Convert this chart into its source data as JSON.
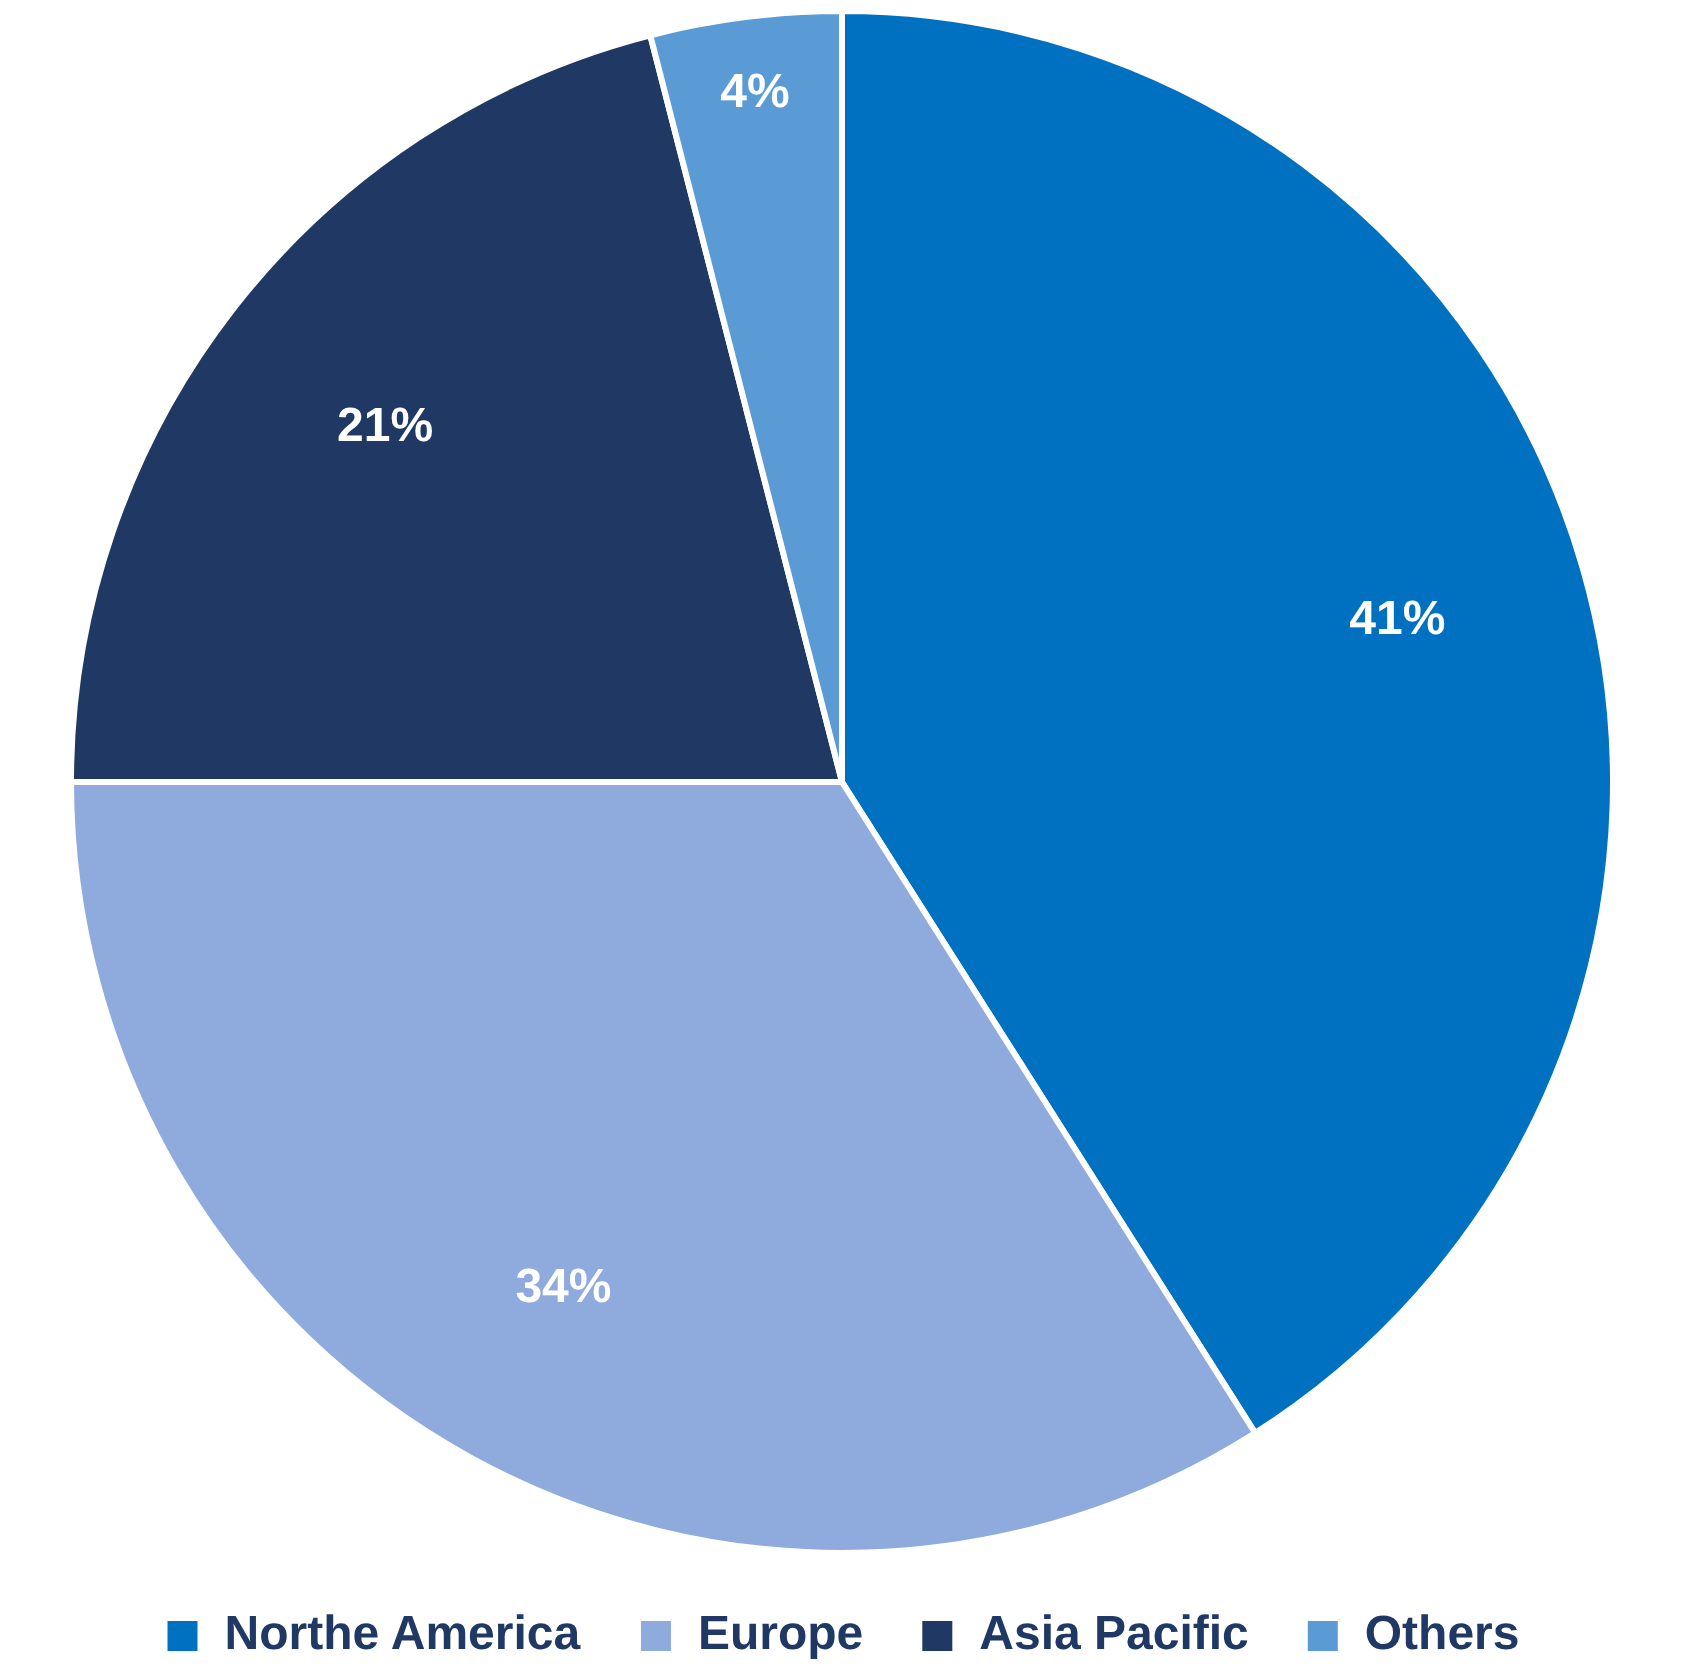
{
  "chart_data": {
    "type": "pie",
    "categories": [
      "Northe America",
      "Europe",
      "Asia Pacific",
      "Others"
    ],
    "values": [
      41,
      34,
      21,
      4
    ],
    "colors": [
      "#0070c0",
      "#8faadc",
      "#203864",
      "#5b9bd5"
    ],
    "value_labels": [
      "41%",
      "34%",
      "21%",
      "4%"
    ],
    "legend": "bottom"
  }
}
